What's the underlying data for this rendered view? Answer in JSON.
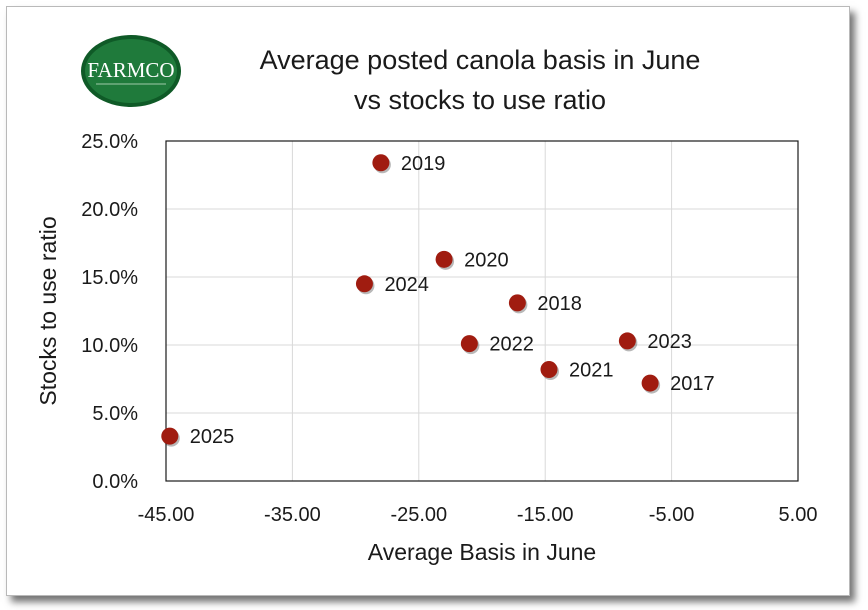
{
  "logo": {
    "text": "FARMCO",
    "colors": {
      "fill": "#1f7a3b",
      "ring": "#0f5a27",
      "text": "#ffffff"
    }
  },
  "title_lines": [
    "Average posted canola basis in June",
    "vs stocks to use ratio"
  ],
  "chart_data": {
    "type": "scatter",
    "title": "Average posted canola basis in June vs stocks to use ratio",
    "xlabel": "Average Basis in June",
    "ylabel": "Stocks to use ratio",
    "xlim": [
      -45,
      5
    ],
    "ylim": [
      0,
      0.25
    ],
    "x_ticks": [
      -45,
      -35,
      -25,
      -15,
      -5,
      5
    ],
    "x_tick_labels": [
      "-45.00",
      "-35.00",
      "-25.00",
      "-15.00",
      "-5.00",
      "5.00"
    ],
    "y_ticks": [
      0,
      0.05,
      0.1,
      0.15,
      0.2,
      0.25
    ],
    "y_tick_labels": [
      "0.0%",
      "5.0%",
      "10.0%",
      "15.0%",
      "20.0%",
      "25.0%"
    ],
    "grid": true,
    "marker_color": "#a01c10",
    "points": [
      {
        "label": "2019",
        "x": -28.0,
        "y": 0.234
      },
      {
        "label": "2020",
        "x": -23.0,
        "y": 0.163
      },
      {
        "label": "2024",
        "x": -29.3,
        "y": 0.145
      },
      {
        "label": "2018",
        "x": -17.2,
        "y": 0.131
      },
      {
        "label": "2022",
        "x": -21.0,
        "y": 0.101
      },
      {
        "label": "2023",
        "x": -8.5,
        "y": 0.103
      },
      {
        "label": "2021",
        "x": -14.7,
        "y": 0.082
      },
      {
        "label": "2017",
        "x": -6.7,
        "y": 0.072
      },
      {
        "label": "2025",
        "x": -44.7,
        "y": 0.033
      }
    ]
  }
}
